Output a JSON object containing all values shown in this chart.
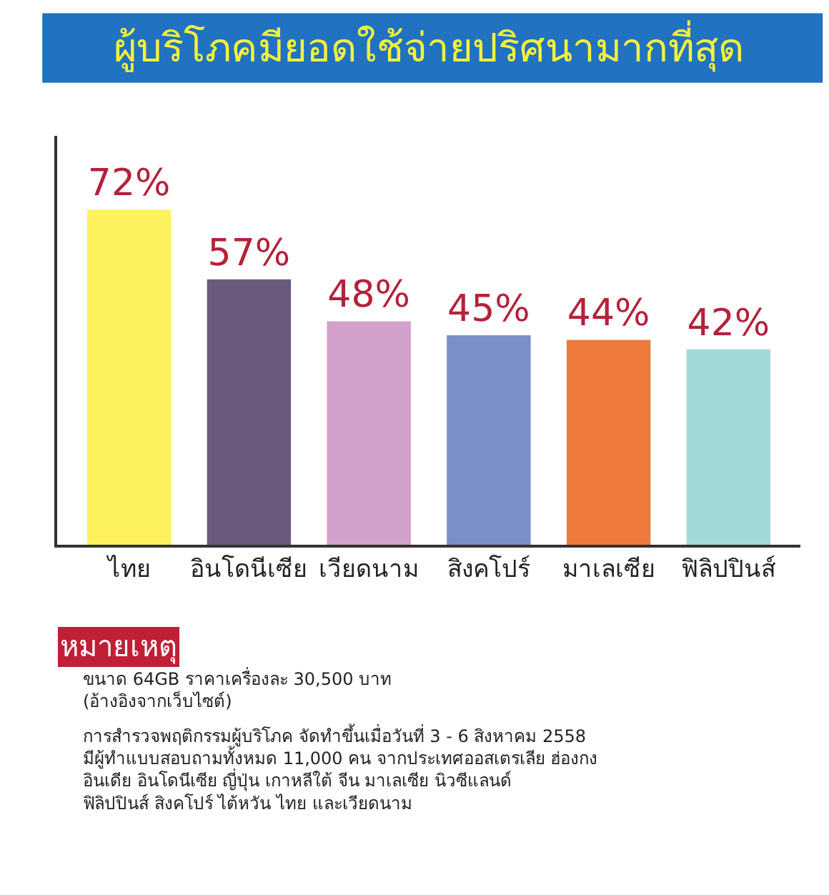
{
  "chart_data": {
    "type": "bar",
    "title": "ผู้บริโภคมียอดใช้จ่ายปริศนามากที่สุด",
    "categories": [
      "ไทย",
      "อินโดนีเซีย",
      "เวียดนาม",
      "สิงคโปร์",
      "มาเลเซีย",
      "ฟิลิปปินส์"
    ],
    "values": [
      72,
      57,
      48,
      45,
      44,
      42
    ],
    "value_labels": [
      "72%",
      "57%",
      "48%",
      "45%",
      "44%",
      "42%"
    ],
    "colors": [
      "#fdf15c",
      "#6b5a7e",
      "#d3a0cb",
      "#7b8fc6",
      "#ee7a3c",
      "#a2d9d8"
    ],
    "annotations": [
      "หมายเหตุ",
      "ขนาด 64GB ราคาเครื่องละ 30,500 บาท\n(อ้างอิงจากเว็บไซต์)",
      "การสำรวจพฤติกรรมผู้บริโภค จัดทำขึ้นเมื่อวันที่ 3 - 6 สิงหาคม 2558\nมีผู้ทำแบบสอบถามทั้งหมด 11,000 คน จากประเทศออสเตรเลีย ฮ่องกง\nอินเดีย อินโดนีเซีย ญี่ปุ่น เกาหลีใต้ จีน มาเลเซีย นิวซีแลนด์\nฟิลิปปินส์ สิงคโปร์ ไต้หวัน ไทย และเวียดนาม"
    ]
  }
}
